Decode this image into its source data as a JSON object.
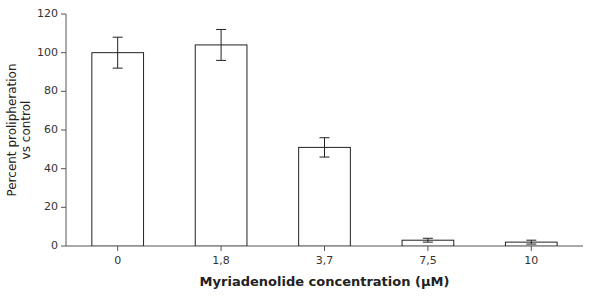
{
  "chart_data": {
    "type": "bar",
    "categories": [
      "0",
      "1,8",
      "3,7",
      "7,5",
      "10"
    ],
    "values": [
      100,
      104,
      51,
      3,
      2
    ],
    "errors": [
      8,
      8,
      5,
      1,
      1
    ],
    "color": "#ffffff",
    "xlabel": "Myriadenolide concentration (μM)",
    "ylabel": "Percent prolipheration\nvs control",
    "ylim": [
      0,
      120
    ],
    "yticks": [
      0,
      20,
      40,
      60,
      80,
      100,
      120
    ],
    "grid": false
  }
}
